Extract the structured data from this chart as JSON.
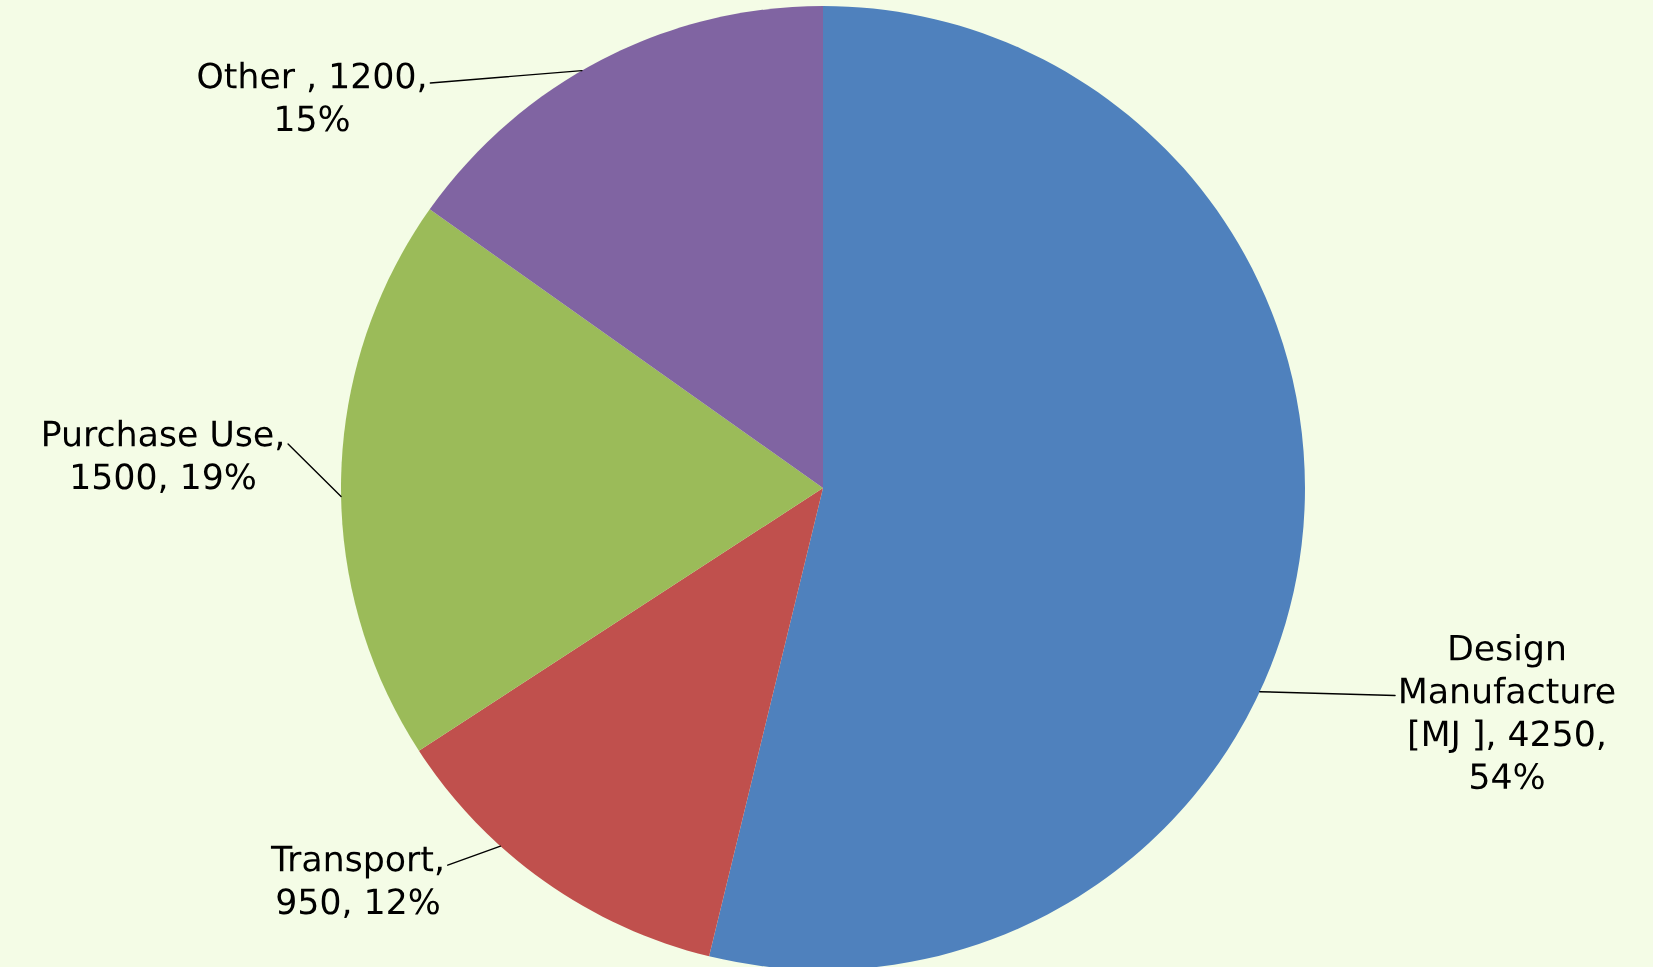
{
  "chart_data": {
    "type": "pie",
    "categories": [
      "Design Manufacture [MJ ]",
      "Transport",
      "Purchase Use",
      "Other "
    ],
    "values": [
      4250,
      950,
      1500,
      1200
    ],
    "colors": [
      "#4f81bd",
      "#c0504d",
      "#9bbb59",
      "#8064a2"
    ],
    "value_labels": [
      ", 4250, 54%",
      ", 950, 12%",
      ", 1500, 19%",
      ", 1200, 15%"
    ]
  }
}
